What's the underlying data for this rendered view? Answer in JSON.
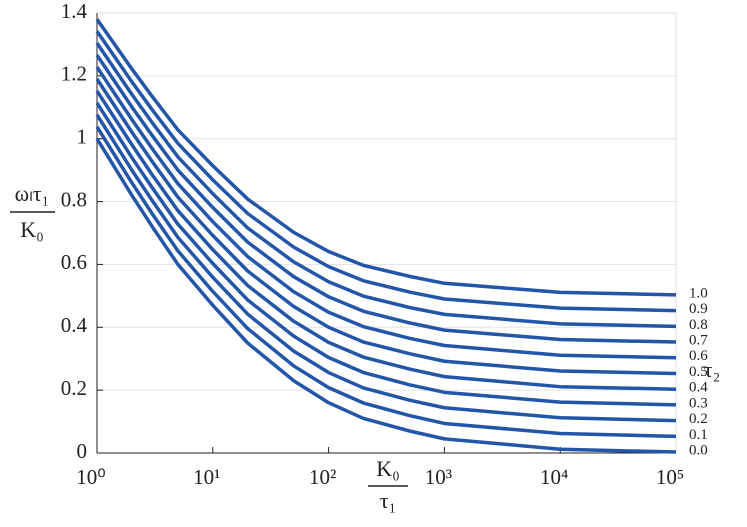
{
  "chart_data": {
    "type": "line",
    "y_label": {
      "numerator": "ωₗτ₁",
      "denominator": "K₀"
    },
    "x_label": {
      "numerator": "K₀",
      "denominator": "τ₁"
    },
    "legend_title": "τ₂",
    "x": [
      1,
      2,
      3,
      5,
      10,
      20,
      50,
      100,
      200,
      500,
      1000,
      10000,
      100000
    ],
    "xlim": [
      1,
      100000
    ],
    "log_x": true,
    "xticks": [
      {
        "value": 1,
        "label": "10⁰"
      },
      {
        "value": 10,
        "label": "10¹"
      },
      {
        "value": 100,
        "label": "10²"
      },
      {
        "value": 1000,
        "label": "10³"
      },
      {
        "value": 10000,
        "label": "10⁴"
      },
      {
        "value": 100000,
        "label": "10⁵"
      }
    ],
    "ylim": [
      0,
      1.4
    ],
    "yticks": [
      0,
      0.2,
      0.4,
      0.6,
      0.8,
      1,
      1.2,
      1.4
    ],
    "grid": "y",
    "series": [
      {
        "name": "0.0",
        "color": "#2356a8",
        "values": [
          1,
          0.82,
          0.72,
          0.6,
          0.47,
          0.35,
          0.23,
          0.16,
          0.11,
          0.07,
          0.045,
          0.012,
          0.003
        ]
      },
      {
        "name": "0.1",
        "color": "#2356a8",
        "values": [
          1.038,
          0.86,
          0.761,
          0.643,
          0.514,
          0.396,
          0.277,
          0.208,
          0.159,
          0.119,
          0.094,
          0.062,
          0.053
        ]
      },
      {
        "name": "0.2",
        "color": "#2356a8",
        "values": [
          1.076,
          0.9,
          0.803,
          0.686,
          0.559,
          0.442,
          0.324,
          0.256,
          0.207,
          0.168,
          0.144,
          0.112,
          0.103
        ]
      },
      {
        "name": "0.3",
        "color": "#2356a8",
        "values": [
          1.114,
          0.94,
          0.844,
          0.728,
          0.603,
          0.487,
          0.372,
          0.304,
          0.256,
          0.217,
          0.193,
          0.162,
          0.153
        ]
      },
      {
        "name": "0.4",
        "color": "#2356a8",
        "values": [
          1.152,
          0.981,
          0.885,
          0.771,
          0.647,
          0.533,
          0.419,
          0.352,
          0.305,
          0.267,
          0.243,
          0.211,
          0.203
        ]
      },
      {
        "name": "0.5",
        "color": "#2356a8",
        "values": [
          1.19,
          1.021,
          0.927,
          0.814,
          0.692,
          0.579,
          0.466,
          0.4,
          0.353,
          0.316,
          0.292,
          0.261,
          0.253
        ]
      },
      {
        "name": "0.6",
        "color": "#2356a8",
        "values": [
          1.228,
          1.061,
          0.968,
          0.857,
          0.736,
          0.625,
          0.513,
          0.448,
          0.402,
          0.365,
          0.342,
          0.311,
          0.303
        ]
      },
      {
        "name": "0.7",
        "color": "#2356a8",
        "values": [
          1.266,
          1.101,
          1.01,
          0.9,
          0.781,
          0.671,
          0.561,
          0.497,
          0.451,
          0.414,
          0.391,
          0.361,
          0.353
        ]
      },
      {
        "name": "0.8",
        "color": "#2356a8",
        "values": [
          1.304,
          1.141,
          1.051,
          0.942,
          0.825,
          0.716,
          0.608,
          0.545,
          0.499,
          0.463,
          0.441,
          0.411,
          0.403
        ]
      },
      {
        "name": "0.9",
        "color": "#2356a8",
        "values": [
          1.342,
          1.181,
          1.092,
          0.985,
          0.869,
          0.762,
          0.655,
          0.593,
          0.548,
          0.512,
          0.49,
          0.461,
          0.453
        ]
      },
      {
        "name": "1.0",
        "color": "#2356a8",
        "values": [
          1.38,
          1.222,
          1.134,
          1.028,
          0.914,
          0.808,
          0.702,
          0.641,
          0.597,
          0.562,
          0.54,
          0.511,
          0.503
        ]
      }
    ]
  }
}
